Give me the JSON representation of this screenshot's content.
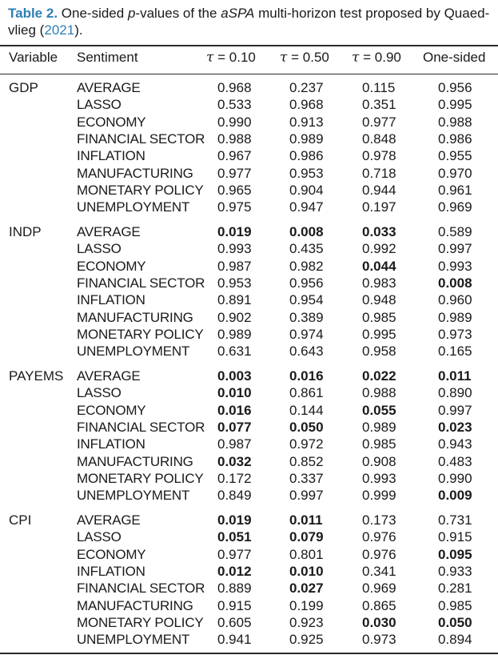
{
  "caption": {
    "label": "Table 2.",
    "text_before": " One-sided ",
    "p_var": "p",
    "text_mid": "-values of the ",
    "method": "aSPA",
    "text_after": " multi-horizon test proposed by Quaed-vlieg (",
    "cite_year": "2021",
    "text_end": ")."
  },
  "headers": {
    "variable": "Variable",
    "sentiment": "Sentiment",
    "tau_symbol": "τ",
    "tau_eq": " = ",
    "tau_values": [
      "0.10",
      "0.50",
      "0.90"
    ],
    "one_sided": "One-sided"
  },
  "groups": [
    {
      "variable": "GDP",
      "rows": [
        {
          "sentiment": "AVERAGE",
          "values": [
            "0.968",
            "0.237",
            "0.115",
            "0.956"
          ],
          "bold": [
            false,
            false,
            false,
            false
          ]
        },
        {
          "sentiment": "LASSO",
          "values": [
            "0.533",
            "0.968",
            "0.351",
            "0.995"
          ],
          "bold": [
            false,
            false,
            false,
            false
          ]
        },
        {
          "sentiment": "ECONOMY",
          "values": [
            "0.990",
            "0.913",
            "0.977",
            "0.988"
          ],
          "bold": [
            false,
            false,
            false,
            false
          ]
        },
        {
          "sentiment": "FINANCIAL SECTOR",
          "values": [
            "0.988",
            "0.989",
            "0.848",
            "0.986"
          ],
          "bold": [
            false,
            false,
            false,
            false
          ]
        },
        {
          "sentiment": "INFLATION",
          "values": [
            "0.967",
            "0.986",
            "0.978",
            "0.955"
          ],
          "bold": [
            false,
            false,
            false,
            false
          ]
        },
        {
          "sentiment": "MANUFACTURING",
          "values": [
            "0.977",
            "0.953",
            "0.718",
            "0.970"
          ],
          "bold": [
            false,
            false,
            false,
            false
          ]
        },
        {
          "sentiment": "MONETARY POLICY",
          "values": [
            "0.965",
            "0.904",
            "0.944",
            "0.961"
          ],
          "bold": [
            false,
            false,
            false,
            false
          ]
        },
        {
          "sentiment": "UNEMPLOYMENT",
          "values": [
            "0.975",
            "0.947",
            "0.197",
            "0.969"
          ],
          "bold": [
            false,
            false,
            false,
            false
          ]
        }
      ]
    },
    {
      "variable": "INDP",
      "rows": [
        {
          "sentiment": "AVERAGE",
          "values": [
            "0.019",
            "0.008",
            "0.033",
            "0.589"
          ],
          "bold": [
            true,
            true,
            true,
            false
          ]
        },
        {
          "sentiment": "LASSO",
          "values": [
            "0.993",
            "0.435",
            "0.992",
            "0.997"
          ],
          "bold": [
            false,
            false,
            false,
            false
          ]
        },
        {
          "sentiment": "ECONOMY",
          "values": [
            "0.987",
            "0.982",
            "0.044",
            "0.993"
          ],
          "bold": [
            false,
            false,
            true,
            false
          ]
        },
        {
          "sentiment": "FINANCIAL SECTOR",
          "values": [
            "0.953",
            "0.956",
            "0.983",
            "0.008"
          ],
          "bold": [
            false,
            false,
            false,
            true
          ]
        },
        {
          "sentiment": "INFLATION",
          "values": [
            "0.891",
            "0.954",
            "0.948",
            "0.960"
          ],
          "bold": [
            false,
            false,
            false,
            false
          ]
        },
        {
          "sentiment": "MANUFACTURING",
          "values": [
            "0.902",
            "0.389",
            "0.985",
            "0.989"
          ],
          "bold": [
            false,
            false,
            false,
            false
          ]
        },
        {
          "sentiment": "MONETARY POLICY",
          "values": [
            "0.989",
            "0.974",
            "0.995",
            "0.973"
          ],
          "bold": [
            false,
            false,
            false,
            false
          ]
        },
        {
          "sentiment": "UNEMPLOYMENT",
          "values": [
            "0.631",
            "0.643",
            "0.958",
            "0.165"
          ],
          "bold": [
            false,
            false,
            false,
            false
          ]
        }
      ]
    },
    {
      "variable": "PAYEMS",
      "rows": [
        {
          "sentiment": "AVERAGE",
          "values": [
            "0.003",
            "0.016",
            "0.022",
            "0.011"
          ],
          "bold": [
            true,
            true,
            true,
            true
          ]
        },
        {
          "sentiment": "LASSO",
          "values": [
            "0.010",
            "0.861",
            "0.988",
            "0.890"
          ],
          "bold": [
            true,
            false,
            false,
            false
          ]
        },
        {
          "sentiment": "ECONOMY",
          "values": [
            "0.016",
            "0.144",
            "0.055",
            "0.997"
          ],
          "bold": [
            true,
            false,
            true,
            false
          ]
        },
        {
          "sentiment": "FINANCIAL SECTOR",
          "values": [
            "0.077",
            "0.050",
            "0.989",
            "0.023"
          ],
          "bold": [
            true,
            true,
            false,
            true
          ]
        },
        {
          "sentiment": "INFLATION",
          "values": [
            "0.987",
            "0.972",
            "0.985",
            "0.943"
          ],
          "bold": [
            false,
            false,
            false,
            false
          ]
        },
        {
          "sentiment": "MANUFACTURING",
          "values": [
            "0.032",
            "0.852",
            "0.908",
            "0.483"
          ],
          "bold": [
            true,
            false,
            false,
            false
          ]
        },
        {
          "sentiment": "MONETARY POLICY",
          "values": [
            "0.172",
            "0.337",
            "0.993",
            "0.990"
          ],
          "bold": [
            false,
            false,
            false,
            false
          ]
        },
        {
          "sentiment": "UNEMPLOYMENT",
          "values": [
            "0.849",
            "0.997",
            "0.999",
            "0.009"
          ],
          "bold": [
            false,
            false,
            false,
            true
          ]
        }
      ]
    },
    {
      "variable": "CPI",
      "rows": [
        {
          "sentiment": "AVERAGE",
          "values": [
            "0.019",
            "0.011",
            "0.173",
            "0.731"
          ],
          "bold": [
            true,
            true,
            false,
            false
          ]
        },
        {
          "sentiment": "LASSO",
          "values": [
            "0.051",
            "0.079",
            "0.976",
            "0.915"
          ],
          "bold": [
            true,
            true,
            false,
            false
          ]
        },
        {
          "sentiment": "ECONOMY",
          "values": [
            "0.977",
            "0.801",
            "0.976",
            "0.095"
          ],
          "bold": [
            false,
            false,
            false,
            true
          ]
        },
        {
          "sentiment": "INFLATION",
          "values": [
            "0.012",
            "0.010",
            "0.341",
            "0.933"
          ],
          "bold": [
            true,
            true,
            false,
            false
          ]
        },
        {
          "sentiment": "FINANCIAL SECTOR",
          "values": [
            "0.889",
            "0.027",
            "0.969",
            "0.281"
          ],
          "bold": [
            false,
            true,
            false,
            false
          ]
        },
        {
          "sentiment": "MANUFACTURING",
          "values": [
            "0.915",
            "0.199",
            "0.865",
            "0.985"
          ],
          "bold": [
            false,
            false,
            false,
            false
          ]
        },
        {
          "sentiment": "MONETARY POLICY",
          "values": [
            "0.605",
            "0.923",
            "0.030",
            "0.050"
          ],
          "bold": [
            false,
            false,
            true,
            true
          ]
        },
        {
          "sentiment": "UNEMPLOYMENT",
          "values": [
            "0.941",
            "0.925",
            "0.973",
            "0.894"
          ],
          "bold": [
            false,
            false,
            false,
            false
          ]
        }
      ]
    }
  ]
}
